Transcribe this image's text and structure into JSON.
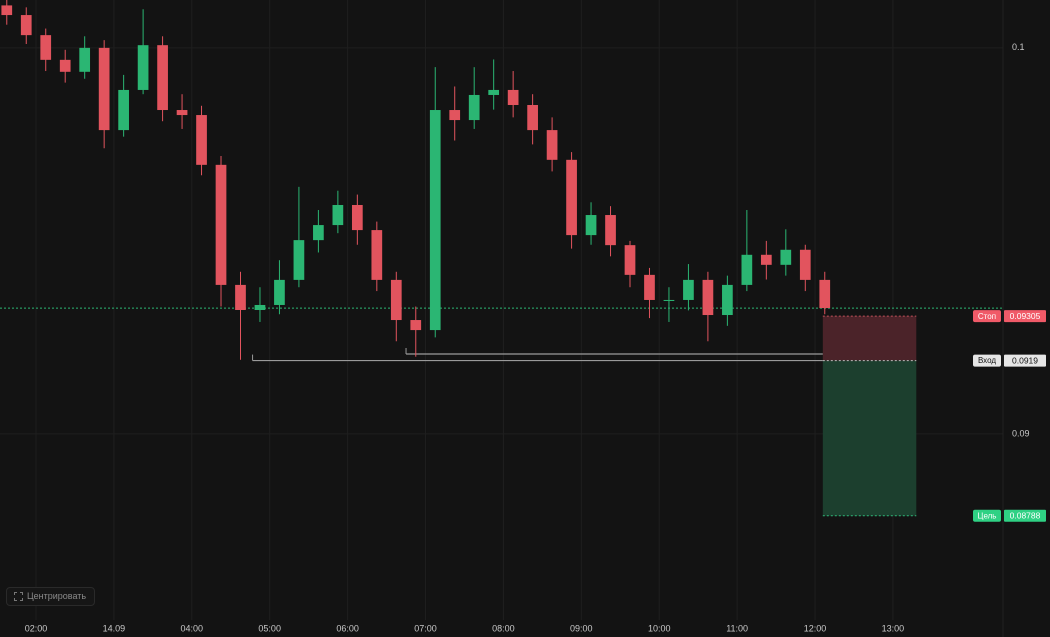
{
  "chart_data": {
    "type": "candlestick",
    "x": [
      1.625,
      1.875,
      2.125,
      2.375,
      2.625,
      2.875,
      3.125,
      3.375,
      3.625,
      3.875,
      4.125,
      4.375,
      4.625,
      4.875,
      5.125,
      5.375,
      5.625,
      5.875,
      6.125,
      6.375,
      6.625,
      6.875,
      7.125,
      7.375,
      7.625,
      7.875,
      8.125,
      8.375,
      8.625,
      8.875,
      9.125,
      9.375,
      9.625,
      9.875,
      10.125,
      10.375,
      10.625,
      10.875,
      11.125,
      11.375,
      11.625,
      11.875,
      12.125
    ],
    "open": [
      0.1011,
      0.10085,
      0.10033,
      0.09969,
      0.09938,
      0.1,
      0.09787,
      0.09891,
      0.10007,
      0.09839,
      0.09826,
      0.09697,
      0.09386,
      0.09321,
      0.09334,
      0.09399,
      0.09502,
      0.09541,
      0.09593,
      0.09528,
      0.09399,
      0.09295,
      0.09269,
      0.09839,
      0.09813,
      0.09878,
      0.09891,
      0.09852,
      0.09787,
      0.0971,
      0.09515,
      0.09567,
      0.09489,
      0.09412,
      0.09347,
      0.09347,
      0.09399,
      0.09308,
      0.09386,
      0.09464,
      0.09438,
      0.09477,
      0.09399
    ],
    "high": [
      0.1013,
      0.10105,
      0.1005,
      0.09995,
      0.1003,
      0.1002,
      0.0993,
      0.101,
      0.1003,
      0.0988,
      0.0985,
      0.0972,
      0.0942,
      0.0938,
      0.0945,
      0.0964,
      0.0958,
      0.0963,
      0.0962,
      0.0955,
      0.0942,
      0.0933,
      0.0995,
      0.099,
      0.0995,
      0.0997,
      0.0994,
      0.0988,
      0.0982,
      0.0973,
      0.096,
      0.0959,
      0.095,
      0.0943,
      0.0938,
      0.0944,
      0.0942,
      0.0941,
      0.0958,
      0.095,
      0.0953,
      0.0949,
      0.0942
    ],
    "low": [
      0.1006,
      0.1001,
      0.0994,
      0.0991,
      0.0992,
      0.0974,
      0.0977,
      0.0988,
      0.0981,
      0.0979,
      0.0967,
      0.0933,
      0.09192,
      0.0929,
      0.0931,
      0.0938,
      0.0947,
      0.0952,
      0.0949,
      0.0937,
      0.0924,
      0.092,
      0.0925,
      0.0976,
      0.0979,
      0.0984,
      0.0982,
      0.0975,
      0.0968,
      0.0948,
      0.0949,
      0.0946,
      0.0938,
      0.093,
      0.0929,
      0.0932,
      0.0924,
      0.0928,
      0.0937,
      0.094,
      0.0941,
      0.0937,
      0.0931
    ],
    "close": [
      0.10085,
      0.10033,
      0.09969,
      0.09938,
      0.1,
      0.09787,
      0.09891,
      0.10007,
      0.09839,
      0.09826,
      0.09697,
      0.09386,
      0.09321,
      0.09334,
      0.09399,
      0.09502,
      0.09541,
      0.09593,
      0.09528,
      0.09399,
      0.09295,
      0.09269,
      0.09839,
      0.09813,
      0.09878,
      0.09891,
      0.09852,
      0.09787,
      0.0971,
      0.09515,
      0.09567,
      0.09489,
      0.09412,
      0.09347,
      0.09347,
      0.09399,
      0.09308,
      0.09386,
      0.09464,
      0.09438,
      0.09477,
      0.09399,
      0.09326
    ],
    "up_color": "#2bb673",
    "down_color": "#e2545e",
    "xlim": [
      1.538,
      14.413
    ],
    "ylim": [
      0.08518,
      0.10124
    ],
    "xticks": [
      {
        "value": 2,
        "label": "02:00"
      },
      {
        "value": 3,
        "label": "14.09"
      },
      {
        "value": 4,
        "label": "04:00"
      },
      {
        "value": 5,
        "label": "05:00"
      },
      {
        "value": 6,
        "label": "06:00"
      },
      {
        "value": 7,
        "label": "07:00"
      },
      {
        "value": 8,
        "label": "08:00"
      },
      {
        "value": 9,
        "label": "09:00"
      },
      {
        "value": 10,
        "label": "10:00"
      },
      {
        "value": 11,
        "label": "11:00"
      },
      {
        "value": 12,
        "label": "12:00"
      },
      {
        "value": 13,
        "label": "13:00"
      }
    ],
    "yticks": [
      0.1,
      0.09
    ],
    "grid": true,
    "levels": [
      {
        "x": [
          4.78,
          12.1
        ],
        "value": 0.0919
      },
      {
        "x": [
          6.75,
          12.1
        ],
        "value": 0.09207
      }
    ],
    "position": {
      "x": [
        12.1,
        13.3
      ],
      "stop": {
        "label": "Стоп",
        "value": 0.09305,
        "color": "#f05a68"
      },
      "entry": {
        "label": "Вход",
        "value": 0.0919,
        "color": "#e6e6e6"
      },
      "target": {
        "label": "Цель",
        "value": 0.08788,
        "color": "#2fd184"
      }
    },
    "button": "Центрировать"
  }
}
